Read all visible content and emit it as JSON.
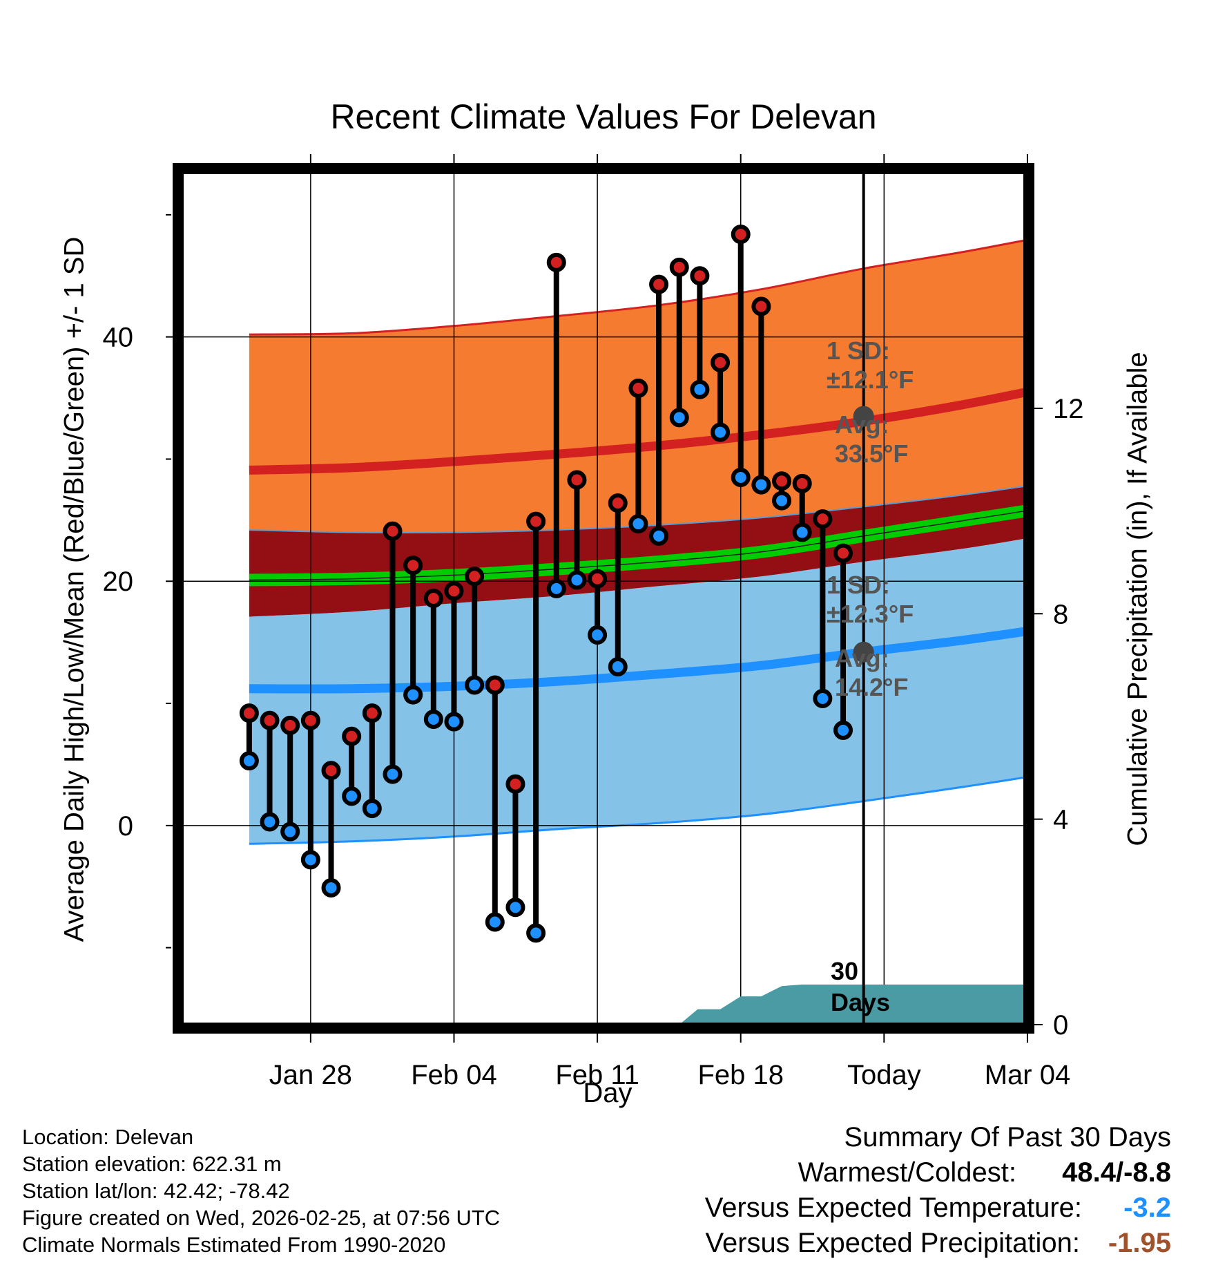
{
  "chart_data": {
    "type": "line",
    "title": "Recent Climate Values For Delevan",
    "xlabel": "Day",
    "ylabel": "Average Daily High/Low/Mean (Red/Blue/Green) +/- 1 SD",
    "ylabel_right": "Cumulative Precipitation (in), If Available",
    "x_tick_labels": [
      "Jan 28",
      "Feb 04",
      "Feb 11",
      "Feb 18",
      "Today",
      "Mar 04"
    ],
    "y_ticks": [
      0,
      20,
      40
    ],
    "y2_ticks": [
      0,
      4,
      8,
      12
    ],
    "ylim": [
      -16.3,
      53.5
    ],
    "y2lim": [
      0,
      16.6
    ],
    "xlim": [
      -3.3,
      37.9
    ],
    "day_index_note": "0 = Jan 25; 30 = Today (Feb 24)",
    "colors": {
      "high_band": "#f47b2f",
      "high_line": "#d32121",
      "low_band": "#84c2e8",
      "low_line": "#1e90ff",
      "overlap_band": "#930f14",
      "mean_line": "#00cc00",
      "precip": "#4a9ba3",
      "high_dot": "#d32121",
      "low_dot": "#1e90ff",
      "sd_marker": "#444444",
      "temp_departure": "#1e90ff",
      "precip_departure": "#a0522d"
    },
    "normals": {
      "days": [
        0,
        5,
        10,
        15,
        20,
        25,
        30,
        35,
        40
      ],
      "high_mean": [
        29.1,
        29.3,
        29.8,
        30.4,
        31.1,
        32.0,
        33.1,
        34.5,
        36.2
      ],
      "high_sd_upper": [
        40.2,
        40.3,
        40.9,
        41.7,
        42.6,
        43.9,
        45.6,
        47.0,
        48.6
      ],
      "high_sd_lower": [
        24.2,
        24.0,
        24.0,
        24.2,
        24.6,
        25.2,
        26.1,
        27.1,
        28.3
      ],
      "low_mean": [
        11.2,
        11.2,
        11.4,
        11.8,
        12.4,
        13.1,
        14.2,
        15.2,
        16.4
      ],
      "low_sd_upper": [
        17.1,
        17.5,
        18.2,
        18.8,
        19.6,
        20.4,
        21.6,
        22.7,
        24.1
      ],
      "low_sd_lower": [
        -1.5,
        -1.3,
        -0.9,
        -0.3,
        0.2,
        0.9,
        2.0,
        3.2,
        4.5
      ],
      "mean_mean": [
        20.1,
        20.2,
        20.5,
        21.0,
        21.6,
        22.4,
        23.7,
        25.0,
        26.3
      ]
    },
    "daily": {
      "days": [
        0,
        1,
        2,
        3,
        4,
        5,
        6,
        7,
        8,
        9,
        10,
        11,
        12,
        13,
        14,
        15,
        16,
        17,
        18,
        19,
        20,
        21,
        22,
        23,
        24,
        25,
        26,
        27,
        28,
        29
      ],
      "highs": [
        9.2,
        8.6,
        8.2,
        8.6,
        4.5,
        7.3,
        9.2,
        24.1,
        21.3,
        18.6,
        19.2,
        20.4,
        11.5,
        3.4,
        24.9,
        46.1,
        28.3,
        20.2,
        26.4,
        35.8,
        44.3,
        45.7,
        45.0,
        37.9,
        48.4,
        42.5,
        28.2,
        28.0,
        25.1,
        22.3
      ],
      "lows": [
        5.3,
        0.3,
        -0.5,
        -2.8,
        -5.1,
        2.4,
        1.4,
        4.2,
        10.7,
        8.7,
        8.5,
        11.5,
        -7.9,
        -6.7,
        -8.8,
        19.4,
        20.1,
        15.6,
        13.0,
        24.7,
        23.7,
        33.4,
        35.7,
        32.2,
        28.5,
        27.9,
        26.6,
        24.0,
        10.4,
        7.8
      ]
    },
    "precip_cumulative": {
      "days": [
        21.0,
        21.9,
        23.0,
        24.0,
        25.0,
        26.0,
        27.0,
        28.0,
        29.0,
        30.0,
        33.0,
        37.9
      ],
      "values": [
        0,
        0.3,
        0.3,
        0.55,
        0.55,
        0.75,
        0.78,
        0.78,
        0.78,
        0.78,
        0.78,
        0.78
      ]
    },
    "annotations": {
      "high_sd": "1 SD:",
      "high_sd_val": "±12.1°F",
      "high_avg": "Avg:",
      "high_avg_val": "33.5°F",
      "low_sd": "1 SD:",
      "low_sd_val": "±12.3°F",
      "low_avg": "Avg:",
      "low_avg_val": "14.2°F",
      "high_avg_marker": 33.5,
      "low_avg_marker": 14.2,
      "window_count": "30",
      "window_unit": "Days"
    }
  },
  "info": {
    "location": "Location: Delevan",
    "elevation": "Station elevation: 622.31 m",
    "latlon": "Station lat/lon: 42.42; -78.42",
    "created": "Figure created on Wed, 2026-02-25, at 07:56 UTC",
    "normals": "Climate Normals Estimated From 1990-2020"
  },
  "summary": {
    "heading": "Summary Of Past 30 Days",
    "warmest_label": "Warmest/Coldest:",
    "warmest_value": "48.4/-8.8",
    "temp_label": "Versus Expected Temperature:",
    "temp_value": "-3.2",
    "precip_label": "Versus Expected Precipitation:",
    "precip_value": "-1.95"
  }
}
